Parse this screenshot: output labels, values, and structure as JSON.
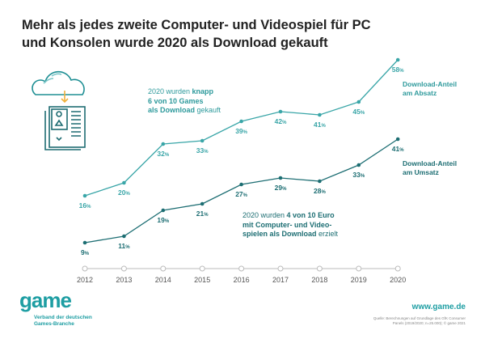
{
  "title_line1": "Mehr als jedes zweite Computer- und Videospiel für PC",
  "title_line2": "und Konsolen wurde 2020 als Download gekauft",
  "colors": {
    "absatz": "#3aa6a8",
    "umsatz": "#1d6e73",
    "axis": "#bbbbbb",
    "icon_arrow": "#f0b13c"
  },
  "icon": "cloud-download-game-icon",
  "note_absatz": {
    "p1": "2020 wurden ",
    "b1": "knapp",
    "b2": "6 von 10 Games",
    "b3": "als Download",
    "p2": " gekauft"
  },
  "note_umsatz": {
    "p1": "2020 wurden ",
    "b1": "4 von 10 Euro",
    "b2": "mit Computer- und Video-",
    "b3": "spielen als Download",
    "p2": " erzielt"
  },
  "chart_data": {
    "type": "line",
    "x": [
      2012,
      2013,
      2014,
      2015,
      2016,
      2017,
      2018,
      2019,
      2020
    ],
    "unit": "%",
    "series": [
      {
        "name": "Download-Anteil am Absatz",
        "name_l1": "Download-Anteil",
        "name_l2": "am Absatz",
        "values": [
          16,
          20,
          32,
          33,
          39,
          42,
          41,
          45,
          58
        ]
      },
      {
        "name": "Download-Anteil am Umsatz",
        "name_l1": "Download-Anteil",
        "name_l2": "am Umsatz",
        "values": [
          9,
          11,
          19,
          21,
          27,
          29,
          28,
          33,
          41
        ]
      }
    ],
    "grid": false,
    "legend": "right, inline labels"
  },
  "footer": {
    "logo": "game",
    "org_l1": "Verband der deutschen",
    "org_l2": "Games-Branche",
    "url": "www.game.de",
    "source_l1": "Quelle: Berechnungen auf Grundlage des GfK Consumer",
    "source_l2": "Panels (2019/2020; n=25.000); © game 2021"
  }
}
